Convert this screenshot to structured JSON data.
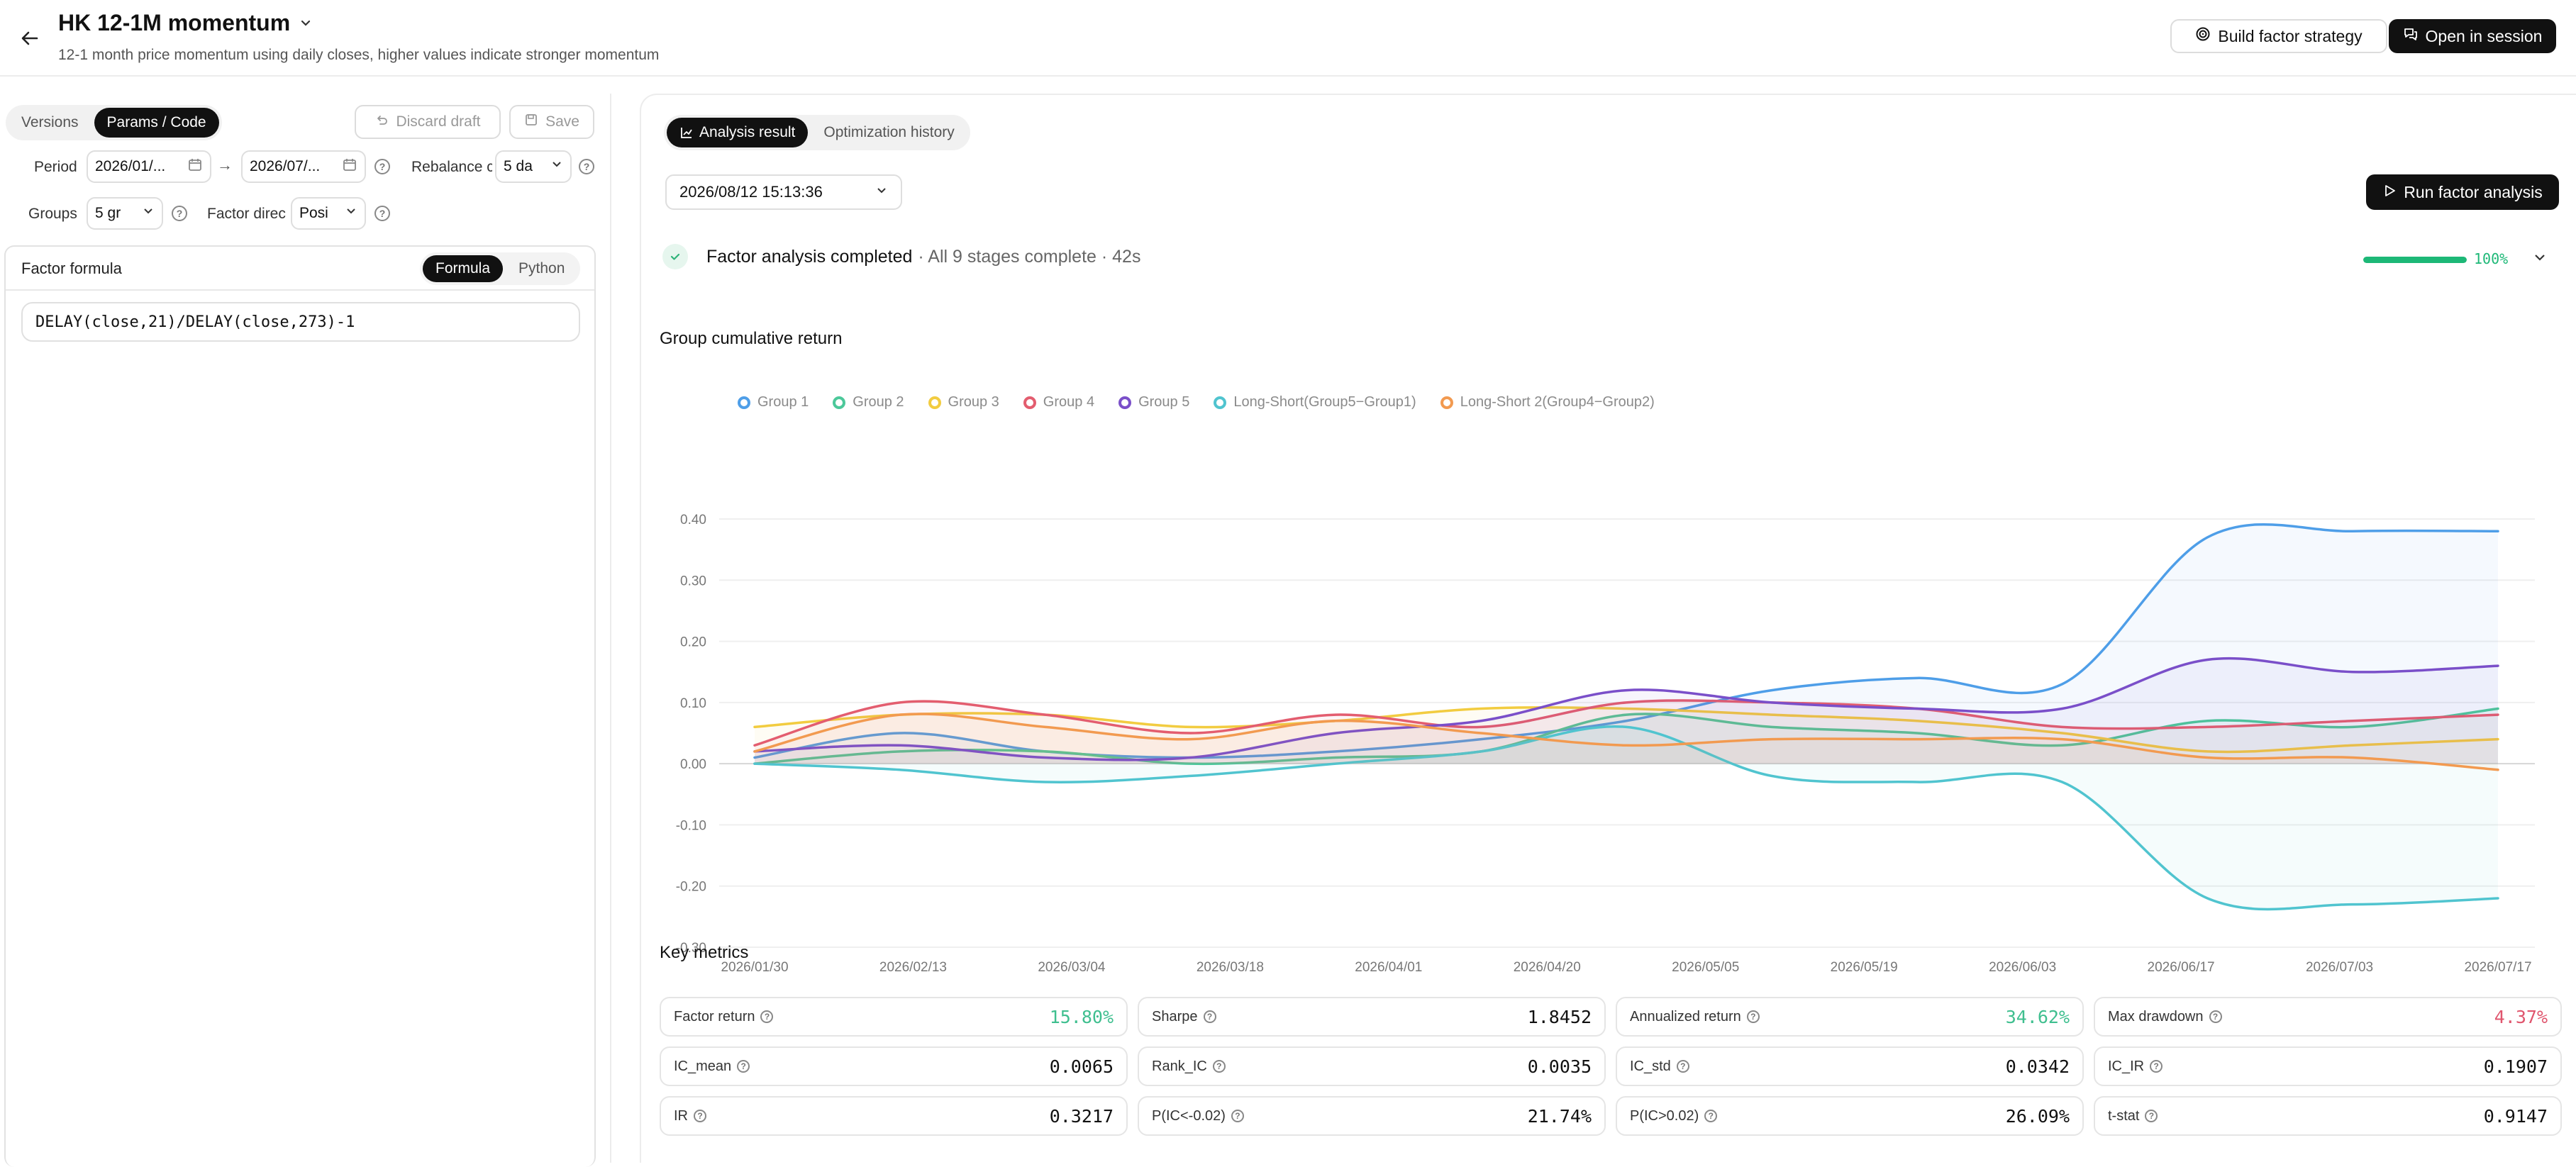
{
  "header": {
    "title": "HK 12-1M momentum",
    "subtitle": "12-1 month price momentum using daily closes, higher values indicate stronger momentum",
    "build_strategy_label": "Build factor strategy",
    "open_session_label": "Open in session"
  },
  "left": {
    "tabs": [
      {
        "label": "Versions"
      },
      {
        "label": "Params / Code"
      }
    ],
    "active_tab": 1,
    "discard_label": "Discard draft",
    "save_label": "Save",
    "period_label": "Period",
    "period_start": "2026/01/...",
    "period_end": "2026/07/...",
    "rebalance_label": "Rebalance c",
    "rebalance_value": "5 da",
    "groups_label": "Groups",
    "groups_value": "5 gr",
    "direction_label": "Factor direc",
    "direction_value": "Posi",
    "formula_title": "Factor formula",
    "formula_tabs": [
      {
        "label": "Formula"
      },
      {
        "label": "Python"
      }
    ],
    "formula_text": "DELAY(close,21)/DELAY(close,273)-1"
  },
  "right": {
    "tabs": [
      {
        "label": "Analysis result"
      },
      {
        "label": "Optimization history"
      }
    ],
    "run_select": "2026/08/12 15:13:36",
    "run_button_label": "Run factor analysis",
    "status_title": "Factor analysis completed",
    "status_detail": "· All 9 stages complete · 42s",
    "progress_pct": 100,
    "progress_text": "100%",
    "chart_title": "Group cumulative return",
    "metrics_title": "Key metrics",
    "metrics": [
      {
        "name": "Factor return",
        "value": "15.80%",
        "color": "#3fbf8f"
      },
      {
        "name": "Sharpe",
        "value": "1.8452",
        "color": "#111111"
      },
      {
        "name": "Annualized return",
        "value": "34.62%",
        "color": "#3fbf8f"
      },
      {
        "name": "Max drawdown",
        "value": "4.37%",
        "color": "#e0566e"
      },
      {
        "name": "IC_mean",
        "value": "0.0065",
        "color": "#111111"
      },
      {
        "name": "Rank_IC",
        "value": "0.0035",
        "color": "#111111"
      },
      {
        "name": "IC_std",
        "value": "0.0342",
        "color": "#111111"
      },
      {
        "name": "IC_IR",
        "value": "0.1907",
        "color": "#111111"
      },
      {
        "name": "IR",
        "value": "0.3217",
        "color": "#111111"
      },
      {
        "name": "P(IC<-0.02)",
        "value": "21.74%",
        "color": "#111111"
      },
      {
        "name": "P(IC>0.02)",
        "value": "26.09%",
        "color": "#111111"
      },
      {
        "name": "t-stat",
        "value": "0.9147",
        "color": "#111111"
      }
    ]
  },
  "chart_data": {
    "type": "line",
    "title": "Group cumulative return",
    "x_ticks": [
      "2026/01/30",
      "2026/02/13",
      "2026/03/04",
      "2026/03/18",
      "2026/04/01",
      "2026/04/20",
      "2026/05/05",
      "2026/05/19",
      "2026/06/03",
      "2026/06/17",
      "2026/07/03",
      "2026/07/17"
    ],
    "y_ticks": [
      "0.40",
      "0.30",
      "0.20",
      "0.10",
      "0.00",
      "-0.10",
      "-0.20",
      "-0.30"
    ],
    "ylim": [
      -0.3,
      0.4
    ],
    "grid": true,
    "legend_position": "top",
    "series": [
      {
        "name": "Group 1",
        "color": "#4e9ee8",
        "values": [
          0.01,
          0.05,
          0.02,
          0.01,
          0.02,
          0.04,
          0.07,
          0.12,
          0.14,
          0.13,
          0.37,
          0.38,
          0.38
        ]
      },
      {
        "name": "Group 2",
        "color": "#4cc89a",
        "values": [
          0.0,
          0.02,
          0.02,
          0.0,
          0.01,
          0.02,
          0.08,
          0.06,
          0.05,
          0.03,
          0.07,
          0.06,
          0.09
        ]
      },
      {
        "name": "Group 3",
        "color": "#f2cc40",
        "values": [
          0.06,
          0.08,
          0.08,
          0.06,
          0.07,
          0.09,
          0.09,
          0.08,
          0.07,
          0.05,
          0.02,
          0.03,
          0.04
        ]
      },
      {
        "name": "Group 4",
        "color": "#e35d6f",
        "values": [
          0.03,
          0.1,
          0.08,
          0.05,
          0.08,
          0.06,
          0.1,
          0.1,
          0.09,
          0.06,
          0.06,
          0.07,
          0.08
        ]
      },
      {
        "name": "Group 5",
        "color": "#7a4fc9",
        "values": [
          0.02,
          0.03,
          0.01,
          0.01,
          0.05,
          0.07,
          0.12,
          0.1,
          0.09,
          0.09,
          0.17,
          0.15,
          0.16
        ]
      },
      {
        "name": "Long-Short(Group5−Group1)",
        "color": "#50c4cf",
        "values": [
          0.0,
          -0.01,
          -0.03,
          -0.02,
          0.0,
          0.02,
          0.06,
          -0.02,
          -0.03,
          -0.03,
          -0.22,
          -0.23,
          -0.22
        ]
      },
      {
        "name": "Long-Short 2(Group4−Group2)",
        "color": "#f29a50",
        "values": [
          0.02,
          0.08,
          0.06,
          0.04,
          0.07,
          0.05,
          0.03,
          0.04,
          0.04,
          0.04,
          0.01,
          0.01,
          -0.01
        ]
      }
    ]
  }
}
